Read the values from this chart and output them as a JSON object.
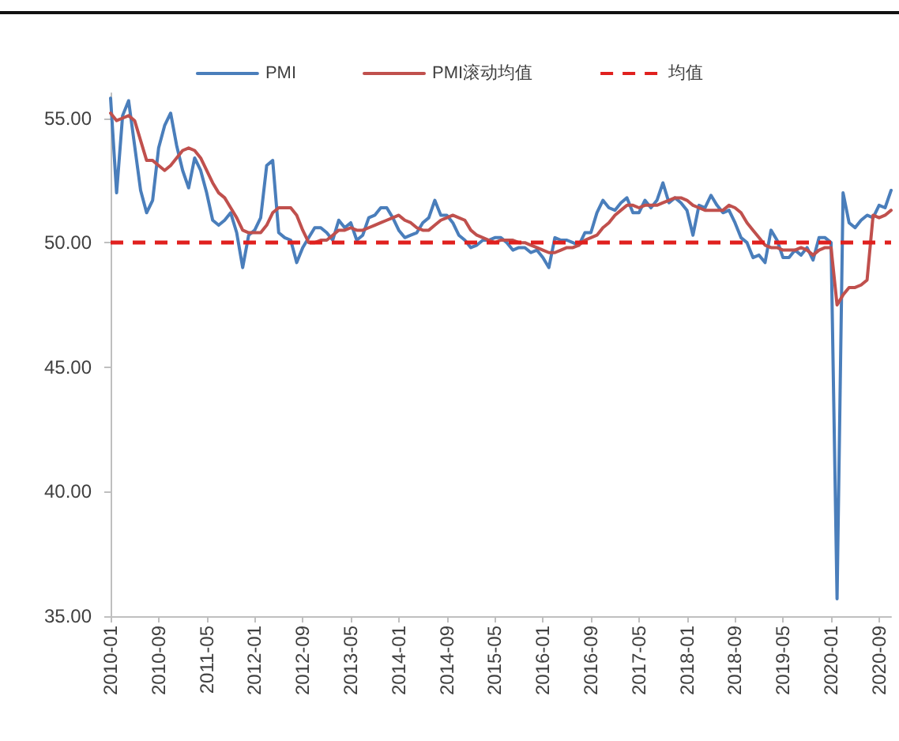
{
  "chart_data": {
    "type": "line",
    "legend": "top",
    "marker": "none",
    "line_style": "solid",
    "grid": false,
    "categories": [
      "2010-01",
      null,
      null,
      null,
      null,
      null,
      null,
      null,
      "2010-09",
      null,
      null,
      null,
      null,
      null,
      null,
      null,
      "2011-05",
      null,
      null,
      null,
      null,
      null,
      null,
      null,
      "2012-01",
      null,
      null,
      null,
      null,
      null,
      null,
      null,
      "2012-09",
      null,
      null,
      null,
      null,
      null,
      null,
      null,
      "2013-05",
      null,
      null,
      null,
      null,
      null,
      null,
      null,
      "2014-01",
      null,
      null,
      null,
      null,
      null,
      null,
      null,
      "2014-09",
      null,
      null,
      null,
      null,
      null,
      null,
      null,
      "2015-05",
      null,
      null,
      null,
      null,
      null,
      null,
      null,
      "2016-01",
      null,
      null,
      null,
      null,
      null,
      null,
      null,
      "2016-09",
      null,
      null,
      null,
      null,
      null,
      null,
      null,
      "2017-05",
      null,
      null,
      null,
      null,
      null,
      null,
      null,
      "2018-01",
      null,
      null,
      null,
      null,
      null,
      null,
      null,
      "2018-09",
      null,
      null,
      null,
      null,
      null,
      null,
      null,
      "2019-05",
      null,
      null,
      null,
      null,
      null,
      null,
      null,
      "2020-01",
      null,
      null,
      null,
      null,
      null,
      null,
      null,
      "2020-09",
      null,
      null
    ],
    "series": [
      {
        "name": "PMI",
        "color": "#4a7ebb",
        "values": [
          55.8,
          52.0,
          55.1,
          55.7,
          53.9,
          52.1,
          51.2,
          51.7,
          53.8,
          54.7,
          55.2,
          53.9,
          52.9,
          52.2,
          53.4,
          52.9,
          52.0,
          50.9,
          50.7,
          50.9,
          51.2,
          50.4,
          49.0,
          50.3,
          50.5,
          51.0,
          53.1,
          53.3,
          50.4,
          50.2,
          50.1,
          49.2,
          49.8,
          50.2,
          50.6,
          50.6,
          50.4,
          50.1,
          50.9,
          50.6,
          50.8,
          50.1,
          50.3,
          51.0,
          51.1,
          51.4,
          51.4,
          51.0,
          50.5,
          50.2,
          50.3,
          50.4,
          50.8,
          51.0,
          51.7,
          51.1,
          51.1,
          50.8,
          50.3,
          50.1,
          49.8,
          49.9,
          50.1,
          50.1,
          50.2,
          50.2,
          50.0,
          49.7,
          49.8,
          49.8,
          49.6,
          49.7,
          49.4,
          49.0,
          50.2,
          50.1,
          50.1,
          50.0,
          49.9,
          50.4,
          50.4,
          51.2,
          51.7,
          51.4,
          51.3,
          51.6,
          51.8,
          51.2,
          51.2,
          51.7,
          51.4,
          51.7,
          52.4,
          51.6,
          51.8,
          51.6,
          51.3,
          50.3,
          51.5,
          51.4,
          51.9,
          51.5,
          51.2,
          51.3,
          50.8,
          50.2,
          50.0,
          49.4,
          49.5,
          49.2,
          50.5,
          50.1,
          49.4,
          49.4,
          49.7,
          49.5,
          49.8,
          49.3,
          50.2,
          50.2,
          50.0,
          35.7,
          52.0,
          50.8,
          50.6,
          50.9,
          51.1,
          51.0,
          51.5,
          51.4,
          52.1
        ]
      },
      {
        "name": "PMI滚动均值",
        "color": "#c0504d",
        "values": [
          55.2,
          54.9,
          55.0,
          55.1,
          54.9,
          54.1,
          53.3,
          53.3,
          53.1,
          52.9,
          53.1,
          53.4,
          53.7,
          53.8,
          53.7,
          53.4,
          52.9,
          52.4,
          52.0,
          51.8,
          51.4,
          51.0,
          50.5,
          50.4,
          50.4,
          50.4,
          50.7,
          51.2,
          51.4,
          51.4,
          51.4,
          51.1,
          50.5,
          50.0,
          50.0,
          50.1,
          50.1,
          50.3,
          50.5,
          50.5,
          50.6,
          50.5,
          50.5,
          50.6,
          50.7,
          50.8,
          50.9,
          51.0,
          51.1,
          50.9,
          50.8,
          50.6,
          50.5,
          50.5,
          50.7,
          50.9,
          51.0,
          51.1,
          51.0,
          50.9,
          50.5,
          50.3,
          50.2,
          50.1,
          50.0,
          50.1,
          50.1,
          50.1,
          50.0,
          50.0,
          49.9,
          49.8,
          49.7,
          49.6,
          49.6,
          49.7,
          49.8,
          49.8,
          49.9,
          50.1,
          50.2,
          50.3,
          50.6,
          50.8,
          51.1,
          51.3,
          51.5,
          51.5,
          51.4,
          51.5,
          51.5,
          51.5,
          51.6,
          51.7,
          51.8,
          51.8,
          51.7,
          51.5,
          51.4,
          51.3,
          51.3,
          51.3,
          51.3,
          51.5,
          51.4,
          51.2,
          50.8,
          50.5,
          50.2,
          49.9,
          49.8,
          49.8,
          49.7,
          49.7,
          49.7,
          49.8,
          49.7,
          49.5,
          49.7,
          49.8,
          49.8,
          47.5,
          47.9,
          48.2,
          48.2,
          48.3,
          48.5,
          51.1,
          51.0,
          51.1,
          51.3
        ]
      }
    ],
    "ylim": [
      35,
      56
    ],
    "yticks": [
      {
        "value": 35,
        "label": "35.00"
      },
      {
        "value": 40,
        "label": "40.00"
      },
      {
        "value": 45,
        "label": "45.00"
      },
      {
        "value": 50,
        "label": "50.00"
      },
      {
        "value": 55,
        "label": "55.00"
      }
    ],
    "ref_lines": [
      {
        "axis": "y",
        "value": 50,
        "label": "均值",
        "color": "#e0201e",
        "line_style": "dashed"
      }
    ]
  }
}
